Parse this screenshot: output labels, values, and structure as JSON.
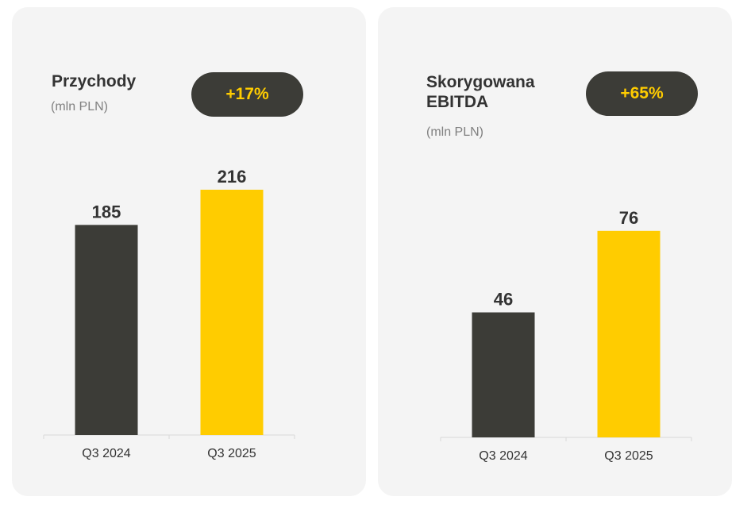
{
  "colors": {
    "dark": "#3c3c37",
    "accent": "#ffcc00",
    "badge_text": "#ffcc00"
  },
  "chart_data": [
    {
      "type": "bar",
      "title": "Przychody",
      "unit": "(mln PLN)",
      "badge": "+17%",
      "categories": [
        "Q3 2024",
        "Q3 2025"
      ],
      "values": [
        185,
        216
      ],
      "ylim": [
        0,
        216
      ],
      "bar_colors": [
        "#3c3c37",
        "#ffcc00"
      ]
    },
    {
      "type": "bar",
      "title": "Skorygowana\nEBITDA",
      "unit": "(mln PLN)",
      "badge": "+65%",
      "categories": [
        "Q3 2024",
        "Q3 2025"
      ],
      "values": [
        46,
        76
      ],
      "ylim": [
        0,
        111
      ],
      "bar_colors": [
        "#3c3c37",
        "#ffcc00"
      ]
    }
  ]
}
